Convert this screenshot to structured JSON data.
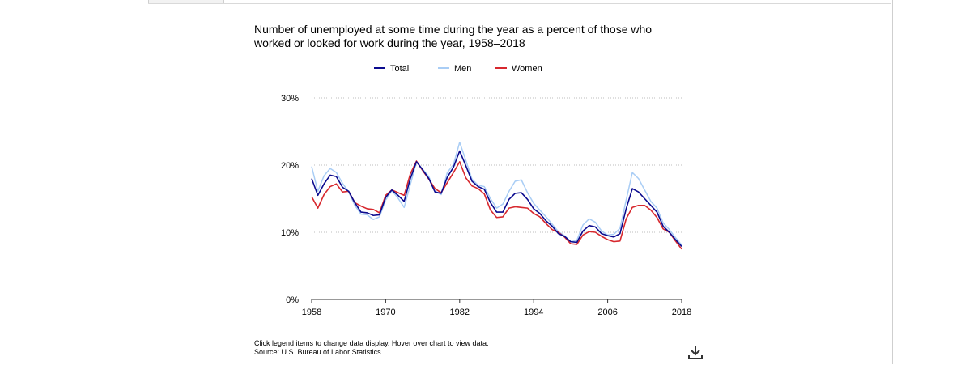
{
  "chart_data": {
    "type": "line",
    "title": "Number of unemployed at some time during the year as a percent of those who worked or looked for work during the year, 1958–2018",
    "xlabel": "",
    "ylabel": "",
    "xlim": [
      1958,
      2018
    ],
    "ylim": [
      0,
      30
    ],
    "x_ticks": [
      "1958",
      "1970",
      "1982",
      "1994",
      "2006",
      "2018"
    ],
    "x_tick_values": [
      1958,
      1970,
      1982,
      1994,
      2006,
      2018
    ],
    "y_ticks": [
      "0%",
      "10%",
      "20%",
      "30%"
    ],
    "y_tick_values": [
      0,
      10,
      20,
      30
    ],
    "grid": "horizontal-dotted",
    "legend_position": "top-center",
    "x": [
      1958,
      1959,
      1960,
      1961,
      1962,
      1963,
      1964,
      1965,
      1966,
      1967,
      1968,
      1969,
      1970,
      1971,
      1972,
      1973,
      1974,
      1975,
      1976,
      1977,
      1978,
      1979,
      1980,
      1981,
      1982,
      1983,
      1984,
      1985,
      1986,
      1987,
      1988,
      1989,
      1990,
      1991,
      1992,
      1993,
      1994,
      1995,
      1996,
      1997,
      1998,
      1999,
      2000,
      2001,
      2002,
      2003,
      2004,
      2005,
      2006,
      2007,
      2008,
      2009,
      2010,
      2011,
      2012,
      2013,
      2014,
      2015,
      2016,
      2017,
      2018
    ],
    "series": [
      {
        "name": "Total",
        "color": "#0b0b8f",
        "values": [
          18.0,
          15.5,
          17.2,
          18.5,
          18.3,
          16.7,
          16.1,
          14.4,
          13.0,
          12.9,
          12.5,
          12.6,
          15.2,
          16.3,
          15.5,
          14.6,
          18.0,
          20.5,
          19.3,
          18.0,
          16.0,
          15.8,
          18.2,
          19.7,
          22.1,
          19.9,
          17.6,
          16.8,
          16.4,
          14.4,
          13.0,
          13.0,
          14.9,
          15.8,
          15.9,
          14.9,
          13.5,
          12.8,
          11.7,
          10.9,
          9.8,
          9.4,
          8.6,
          8.5,
          10.2,
          11.0,
          10.8,
          9.8,
          9.5,
          9.3,
          9.8,
          13.5,
          16.5,
          16.0,
          15.0,
          14.0,
          13.0,
          10.9,
          10.0,
          8.9,
          7.9
        ]
      },
      {
        "name": "Men",
        "color": "#a9cdf5",
        "values": [
          19.8,
          16.1,
          18.4,
          19.5,
          18.9,
          17.3,
          16.0,
          14.0,
          12.7,
          12.6,
          11.9,
          12.3,
          14.8,
          16.2,
          15.1,
          13.7,
          17.1,
          20.5,
          19.4,
          18.3,
          16.1,
          15.6,
          18.9,
          20.1,
          23.4,
          20.7,
          17.9,
          17.0,
          16.8,
          15.0,
          13.6,
          14.2,
          16.1,
          17.6,
          17.8,
          15.9,
          14.3,
          13.3,
          12.3,
          11.2,
          10.1,
          9.5,
          8.6,
          8.8,
          11.1,
          12.0,
          11.5,
          10.2,
          9.6,
          9.7,
          10.6,
          14.8,
          18.9,
          18.0,
          16.3,
          14.6,
          13.6,
          11.4,
          10.4,
          9.2,
          8.1
        ]
      },
      {
        "name": "Women",
        "color": "#d7282e",
        "values": [
          15.3,
          13.6,
          15.6,
          16.8,
          17.2,
          16.0,
          16.1,
          14.4,
          13.9,
          13.5,
          13.4,
          12.9,
          15.5,
          16.3,
          15.9,
          15.5,
          18.7,
          20.6,
          19.2,
          17.9,
          16.5,
          15.9,
          17.4,
          18.9,
          20.5,
          18.1,
          16.9,
          16.5,
          15.7,
          13.3,
          12.2,
          12.3,
          13.6,
          13.8,
          13.7,
          13.6,
          12.8,
          12.3,
          11.3,
          10.4,
          10.0,
          9.3,
          8.3,
          8.2,
          9.6,
          10.1,
          10.0,
          9.4,
          8.9,
          8.6,
          8.7,
          12.0,
          13.7,
          14.0,
          14.0,
          13.3,
          12.2,
          10.5,
          10.0,
          8.7,
          7.5
        ]
      }
    ]
  },
  "notes": {
    "line1": "Click legend items to change data display. Hover over chart to view data.",
    "line2": "Source: U.S. Bureau of Labor Statistics."
  },
  "icons": {
    "download": "download-icon"
  }
}
